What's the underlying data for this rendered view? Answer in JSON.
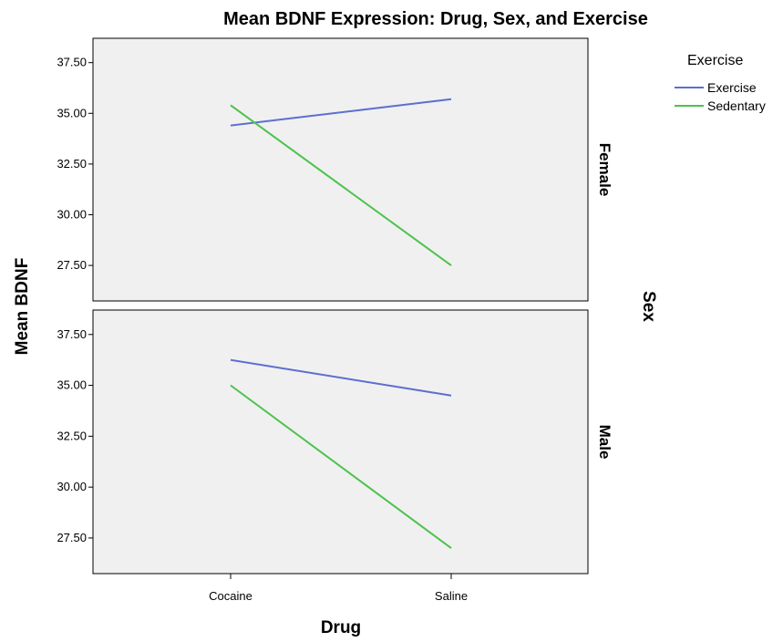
{
  "chart_data": {
    "type": "line",
    "title": "Mean BDNF Expression: Drug, Sex, and Exercise",
    "xlabel": "Drug",
    "ylabel": "Mean BDNF",
    "facet_label": "Sex",
    "categories": [
      "Cocaine",
      "Saline"
    ],
    "y_ticks": [
      27.5,
      30,
      32.5,
      35,
      37.5
    ],
    "y_tick_labels": [
      "27.50",
      "30.00",
      "32.50",
      "35.00",
      "37.50"
    ],
    "ylim": [
      25.75,
      38.7
    ],
    "grid": false,
    "legend": {
      "title": "Exercise",
      "placement": "top-right"
    },
    "panels": [
      {
        "facet": "Female",
        "series": [
          {
            "name": "Exercise",
            "color": "#5b6fcf",
            "values": [
              34.4,
              35.7
            ]
          },
          {
            "name": "Sedentary",
            "color": "#4cc24c",
            "values": [
              35.4,
              27.5
            ]
          }
        ]
      },
      {
        "facet": "Male",
        "series": [
          {
            "name": "Exercise",
            "color": "#5b6fcf",
            "values": [
              36.25,
              34.5
            ]
          },
          {
            "name": "Sedentary",
            "color": "#4cc24c",
            "values": [
              35.0,
              27.0
            ]
          }
        ]
      }
    ]
  }
}
